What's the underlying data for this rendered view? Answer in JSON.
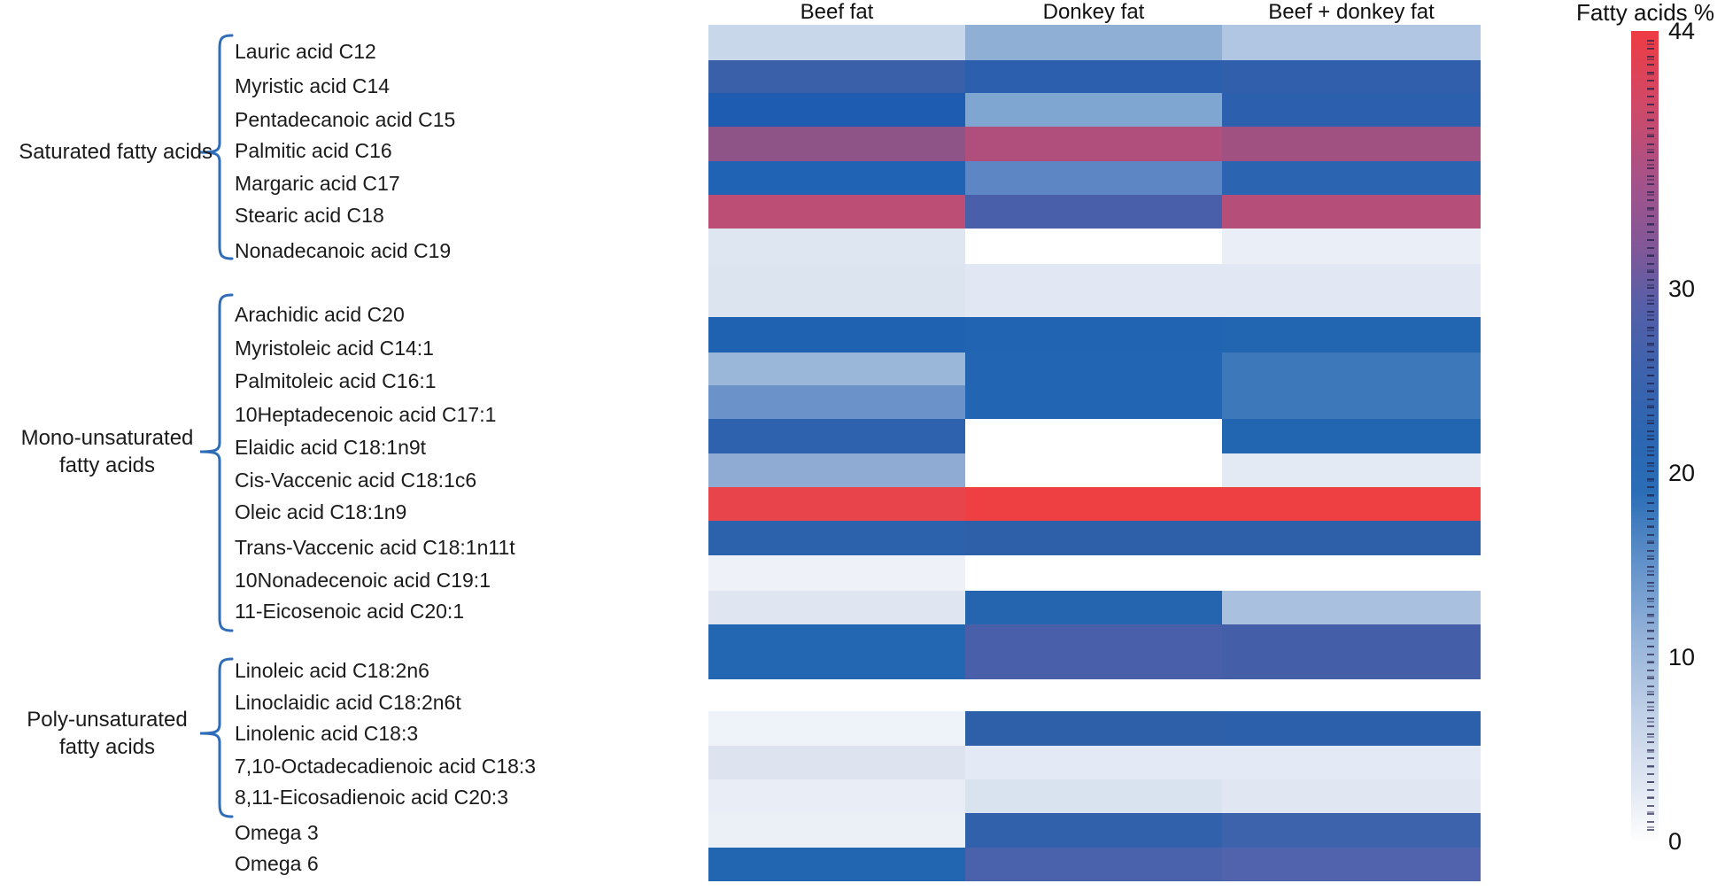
{
  "header": {
    "columns": [
      "Beef fat",
      "Donkey fat",
      "Beef + donkey fat"
    ]
  },
  "colorbar": {
    "title": "Fatty acids %",
    "ticks": [
      44,
      30,
      20,
      10,
      0
    ],
    "min": 0,
    "max": 44,
    "gradient": [
      {
        "value": 44,
        "color": "#ee3b43"
      },
      {
        "value": 40,
        "color": "#d04967"
      },
      {
        "value": 36,
        "color": "#a65289"
      },
      {
        "value": 32,
        "color": "#7e5899"
      },
      {
        "value": 29,
        "color": "#555fa8"
      },
      {
        "value": 26,
        "color": "#4062ad"
      },
      {
        "value": 22,
        "color": "#2b66b1"
      },
      {
        "value": 19,
        "color": "#2a6db6"
      },
      {
        "value": 15,
        "color": "#6392ca"
      },
      {
        "value": 11,
        "color": "#95b3d9"
      },
      {
        "value": 7,
        "color": "#c0d0e7"
      },
      {
        "value": 3,
        "color": "#e0e7f2"
      },
      {
        "value": 0,
        "color": "#fefefe"
      }
    ]
  },
  "groups": [
    {
      "name": "Saturated fatty acids",
      "lines": [
        "Saturated fatty acids"
      ]
    },
    {
      "name": "Mono-unsaturated fatty acids",
      "lines": [
        "Mono-unsaturated",
        "fatty acids"
      ]
    },
    {
      "name": "Poly-unsaturated fatty acids",
      "lines": [
        "Poly-unsaturated",
        "fatty acids"
      ]
    }
  ],
  "chart_data": {
    "type": "heatmap",
    "unit": "fatty acids %",
    "value_range": [
      0,
      44
    ],
    "legend_title": "Fatty acids %",
    "columns": [
      "Beef fat",
      "Donkey fat",
      "Beef + donkey fat"
    ],
    "rows": [
      {
        "label": "Lauric acid C12",
        "group": "Saturated fatty acids",
        "values": {
          "beef": 5,
          "donkey": 10,
          "mix": 7
        },
        "colors": {
          "beef": "#c8d7ea",
          "donkey": "#8fafd4",
          "mix": "#b0c6e2"
        }
      },
      {
        "label": "Myristic acid C14",
        "group": "Saturated fatty acids",
        "values": {
          "beef": 25,
          "donkey": 23,
          "mix": 24
        },
        "colors": {
          "beef": "#3b60aa",
          "donkey": "#2c5fae",
          "mix": "#325fab"
        }
      },
      {
        "label": "Pentadecanoic acid C15",
        "group": "Saturated fatty acids",
        "values": {
          "beef": 22,
          "donkey": 11,
          "mix": 23
        },
        "colors": {
          "beef": "#1d5cb1",
          "donkey": "#7fa6d0",
          "mix": "#2c5fae"
        }
      },
      {
        "label": "Palmitic acid C16",
        "group": "Saturated fatty acids",
        "values": {
          "beef": 36,
          "donkey": 39,
          "mix": 37
        },
        "colors": {
          "beef": "#8e5387",
          "donkey": "#b04f7c",
          "mix": "#a05181"
        }
      },
      {
        "label": "Margaric acid C17",
        "group": "Saturated fatty acids",
        "values": {
          "beef": 21,
          "donkey": 14,
          "mix": 21
        },
        "colors": {
          "beef": "#2063b5",
          "donkey": "#5d87c4",
          "mix": "#2b64b0"
        }
      },
      {
        "label": "Stearic acid C18",
        "group": "Saturated fatty acids",
        "values": {
          "beef": 40,
          "donkey": 29,
          "mix": 39
        },
        "colors": {
          "beef": "#bc4d75",
          "donkey": "#4a5fa9",
          "mix": "#b54e79"
        }
      },
      {
        "label": "Nonadecanoic acid C19",
        "group": "Saturated fatty acids",
        "values": {
          "beef": 3,
          "donkey": 0,
          "mix": 1
        },
        "colors": {
          "beef": "#dee6f2",
          "donkey": "#ffffff",
          "mix": "#eaeef7"
        }
      },
      {
        "label": "Arachidic acid C20",
        "group": "Mono-unsaturated fatty acids",
        "values": {
          "beef": 3,
          "donkey": 2,
          "mix": 2
        },
        "colors": {
          "beef": "#dce4f0",
          "donkey": "#e1e7f3",
          "mix": "#e1e7f3"
        }
      },
      {
        "label": "Myristoleic acid C14:1",
        "group": "Mono-unsaturated fatty acids",
        "values": {
          "beef": 21,
          "donkey": 21,
          "mix": 21
        },
        "colors": {
          "beef": "#2062b2",
          "donkey": "#2164b1",
          "mix": "#2266b2"
        }
      },
      {
        "label": "Palmitoleic acid C16:1",
        "group": "Mono-unsaturated fatty acids",
        "values": {
          "beef": 9,
          "donkey": 21,
          "mix": 17
        },
        "colors": {
          "beef": "#9ab7da",
          "donkey": "#2265b3",
          "mix": "#3d78bb"
        }
      },
      {
        "label": "10Heptadecenoic acid C17:1",
        "group": "Mono-unsaturated fatty acids",
        "values": {
          "beef": 13,
          "donkey": 21,
          "mix": 17
        },
        "colors": {
          "beef": "#6b93c9",
          "donkey": "#2265b3",
          "mix": "#3d78bb"
        }
      },
      {
        "label": "Elaidic acid C18:1n9t",
        "group": "Mono-unsaturated fatty acids",
        "values": {
          "beef": 23,
          "donkey": 0,
          "mix": 21
        },
        "colors": {
          "beef": "#2e62ae",
          "donkey": "#ffffff",
          "mix": "#2266b2"
        }
      },
      {
        "label": "Cis-Vaccenic acid C18:1c6",
        "group": "Mono-unsaturated fatty acids",
        "values": {
          "beef": 10,
          "donkey": 0,
          "mix": 2
        },
        "colors": {
          "beef": "#8fabd3",
          "donkey": "#ffffff",
          "mix": "#e4eaf4"
        }
      },
      {
        "label": "Oleic acid C18:1n9",
        "group": "Mono-unsaturated fatty acids",
        "values": {
          "beef": 42,
          "donkey": 44,
          "mix": 44
        },
        "colors": {
          "beef": "#e8444c",
          "donkey": "#ee3f43",
          "mix": "#ee3f43"
        }
      },
      {
        "label": "Trans-Vaccenic acid C18:1n11t",
        "group": "Mono-unsaturated fatty acids",
        "values": {
          "beef": 21,
          "donkey": 21,
          "mix": 21
        },
        "colors": {
          "beef": "#2b62ab",
          "donkey": "#2e5fa9",
          "mix": "#2e5fa9"
        }
      },
      {
        "label": "10Nonadecenoic acid C19:1",
        "group": "Mono-unsaturated fatty acids",
        "values": {
          "beef": 1,
          "donkey": 0,
          "mix": 0
        },
        "colors": {
          "beef": "#eef2f8",
          "donkey": "#ffffff",
          "mix": "#ffffff"
        }
      },
      {
        "label": "11-Eicosenoic acid C20:1",
        "group": "Mono-unsaturated fatty acids",
        "values": {
          "beef": 3,
          "donkey": 21,
          "mix": 8
        },
        "colors": {
          "beef": "#dfe6f2",
          "donkey": "#2565b0",
          "mix": "#a9c1de"
        }
      },
      {
        "label": "Linoleic acid C18:2n6",
        "group": "Poly-unsaturated fatty acids",
        "values": {
          "beef": 21,
          "donkey": 29,
          "mix": 27
        },
        "colors": {
          "beef": "#2367b3",
          "donkey": "#4a5fa9",
          "mix": "#445fa8"
        }
      },
      {
        "label": "Linoclaidic acid C18:2n6t",
        "group": "Poly-unsaturated fatty acids",
        "values": {
          "beef": 0,
          "donkey": 0,
          "mix": 0
        },
        "colors": {
          "beef": "#ffffff",
          "donkey": "#ffffff",
          "mix": "#ffffff"
        }
      },
      {
        "label": "Linolenic acid C18:3",
        "group": "Poly-unsaturated fatty acids",
        "values": {
          "beef": 1,
          "donkey": 21,
          "mix": 22
        },
        "colors": {
          "beef": "#eef2f9",
          "donkey": "#2e5fa9",
          "mix": "#2c60ab"
        }
      },
      {
        "label": "7,10-Octadecadienoic acid C18:3",
        "group": "Poly-unsaturated fatty acids",
        "values": {
          "beef": 3,
          "donkey": 2,
          "mix": 2
        },
        "colors": {
          "beef": "#dde4f0",
          "donkey": "#e4eaf5",
          "mix": "#e4eaf5"
        }
      },
      {
        "label": "8,11-Eicosadienoic acid C20:3",
        "group": "Poly-unsaturated fatty acids",
        "values": {
          "beef": 1.5,
          "donkey": 3.5,
          "mix": 2.5
        },
        "colors": {
          "beef": "#e8edf6",
          "donkey": "#d9e2ef",
          "mix": "#e0e7f2"
        }
      },
      {
        "label": "Omega 3",
        "group": "",
        "values": {
          "beef": 1,
          "donkey": 23,
          "mix": 23
        },
        "colors": {
          "beef": "#ebf0f7",
          "donkey": "#3261ab",
          "mix": "#3c63ac"
        }
      },
      {
        "label": "Omega 6",
        "group": "",
        "values": {
          "beef": 21,
          "donkey": 29,
          "mix": 30
        },
        "colors": {
          "beef": "#2266b2",
          "donkey": "#4a61ab",
          "mix": "#5163ad"
        }
      }
    ]
  }
}
